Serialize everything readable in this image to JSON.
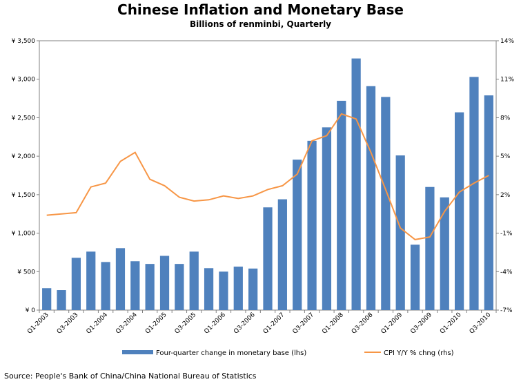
{
  "source": "Source: People's Bank of China/China National Bureau of Statistics",
  "chart_data": {
    "type": "bar",
    "title": "Chinese Inflation and Monetary Base",
    "subtitle": "Billions of renminbi, Quarterly",
    "categories": [
      "Q1-2003",
      "Q2-2003",
      "Q3-2003",
      "Q4-2003",
      "Q1-2004",
      "Q2-2004",
      "Q3-2004",
      "Q4-2004",
      "Q1-2005",
      "Q2-2005",
      "Q3-2005",
      "Q4-2005",
      "Q1-2006",
      "Q2-2006",
      "Q3-2006",
      "Q4-2006",
      "Q1-2007",
      "Q2-2007",
      "Q3-2007",
      "Q4-2007",
      "Q1-2008",
      "Q2-2008",
      "Q3-2008",
      "Q4-2008",
      "Q1-2009",
      "Q2-2009",
      "Q3-2009",
      "Q4-2009",
      "Q1-2010",
      "Q2-2010",
      "Q3-2010"
    ],
    "xtick_labels": [
      "Q1-2003",
      "",
      "Q3-2003",
      "",
      "Q1-2004",
      "",
      "Q3-2004",
      "",
      "Q1-2005",
      "",
      "Q3-2005",
      "",
      "Q1-2006",
      "",
      "Q3-2006",
      "",
      "Q1-2007",
      "",
      "Q3-2007",
      "",
      "Q1-2008",
      "",
      "Q3-2008",
      "",
      "Q1-2009",
      "",
      "Q3-2009",
      "",
      "Q1-2010",
      "",
      "Q3-2010"
    ],
    "left_axis": {
      "ylim": [
        0,
        3500
      ],
      "tick_labels": [
        "¥ 0",
        "¥ 500",
        "¥ 1,000",
        "¥ 1,500",
        "¥ 2,000",
        "¥ 2,500",
        "¥ 3,000",
        "¥ 3,500"
      ]
    },
    "right_axis": {
      "ylim": [
        -7,
        14
      ],
      "tick_labels": [
        "-7%",
        "-4%",
        "-1%",
        "2%",
        "5%",
        "8%",
        "11%",
        "14%"
      ]
    },
    "series": [
      {
        "name": "Four-quarter change in monetary base (lhs)",
        "type": "bar",
        "axis": "left",
        "color": "#4f81bd",
        "values": [
          285,
          260,
          680,
          760,
          625,
          805,
          635,
          600,
          705,
          600,
          760,
          545,
          500,
          565,
          540,
          1335,
          1440,
          1955,
          2200,
          2375,
          2720,
          3270,
          2910,
          2770,
          2010,
          850,
          1600,
          1465,
          2570,
          3030,
          2790
        ]
      },
      {
        "name": "CPI Y/Y % chng (rhs)",
        "type": "line",
        "axis": "right",
        "color": "#f79646",
        "values": [
          0.4,
          0.5,
          0.6,
          2.6,
          2.9,
          4.6,
          5.3,
          3.2,
          2.7,
          1.8,
          1.5,
          1.6,
          1.9,
          1.7,
          1.9,
          2.4,
          2.7,
          3.6,
          6.2,
          6.6,
          8.3,
          7.9,
          5.3,
          2.4,
          -0.6,
          -1.5,
          -1.3,
          0.7,
          2.2,
          2.9,
          3.5
        ]
      }
    ],
    "legend_placement": "bottom",
    "grid": false
  }
}
